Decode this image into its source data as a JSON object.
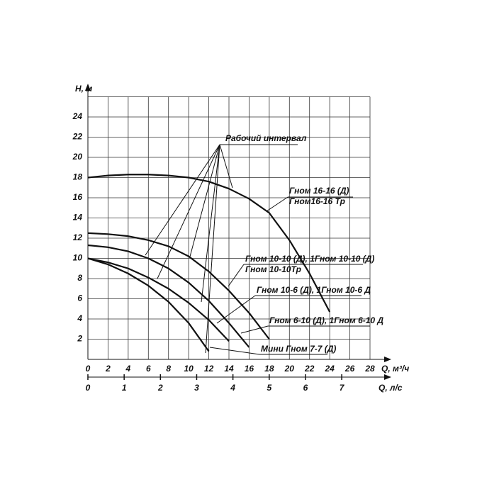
{
  "chart_data": {
    "type": "line",
    "y_label": "Н, м",
    "x_label": "Q, м³/ч",
    "x2_label": "Q, л/с",
    "xlim": [
      0,
      28
    ],
    "xticks": [
      0,
      2,
      4,
      6,
      8,
      10,
      12,
      14,
      16,
      18,
      20,
      22,
      24,
      26,
      28
    ],
    "x2lim": [
      0,
      7.78
    ],
    "x2ticks": [
      0,
      1,
      2,
      3,
      4,
      5,
      6,
      7
    ],
    "ylim": [
      0,
      26
    ],
    "yticks": [
      2,
      4,
      6,
      8,
      10,
      12,
      14,
      16,
      18,
      20,
      22,
      24
    ],
    "grid": true,
    "color": "#111111",
    "series": [
      {
        "name": "Гном 16-16 (Д)",
        "color": "#111111",
        "x": [
          0,
          2,
          4,
          6,
          8,
          10,
          12,
          14,
          16,
          18,
          20,
          22,
          24
        ],
        "values": [
          18,
          18.2,
          18.3,
          18.3,
          18.2,
          18.0,
          17.6,
          16.9,
          15.9,
          14.5,
          11.8,
          8.5,
          4.7
        ]
      },
      {
        "name": "Гном 10-10 (Д), 1Гном 10-10 (Д)",
        "color": "#111111",
        "x": [
          0,
          2,
          4,
          6,
          8,
          10,
          12,
          14,
          16,
          18
        ],
        "values": [
          12.5,
          12.4,
          12.2,
          11.8,
          11.2,
          10.2,
          8.7,
          6.8,
          4.6,
          2.0
        ]
      },
      {
        "name": "Гном 10-6 (Д), 1Гном 10-6 Д",
        "color": "#111111",
        "x": [
          0,
          2,
          4,
          6,
          8,
          10,
          12,
          14,
          16
        ],
        "values": [
          11.3,
          11.1,
          10.7,
          10.0,
          9.0,
          7.6,
          5.8,
          3.6,
          1.2
        ]
      },
      {
        "name": "Гном 6-10 (Д), 1Гном 6-10 Д",
        "color": "#111111",
        "x": [
          0,
          2,
          4,
          6,
          8,
          10,
          12,
          14
        ],
        "values": [
          10,
          9.6,
          9.0,
          8.1,
          7.0,
          5.6,
          3.9,
          1.8
        ]
      },
      {
        "name": "Мини Гном 7-7 (Д)",
        "color": "#111111",
        "x": [
          0,
          2,
          4,
          6,
          8,
          10,
          12
        ],
        "values": [
          10,
          9.4,
          8.5,
          7.3,
          5.7,
          3.6,
          0.8
        ]
      }
    ],
    "annotations": [
      "Рабочий интервал",
      "Гном16-16 Тр",
      "Гном 10-10Тр"
    ]
  }
}
